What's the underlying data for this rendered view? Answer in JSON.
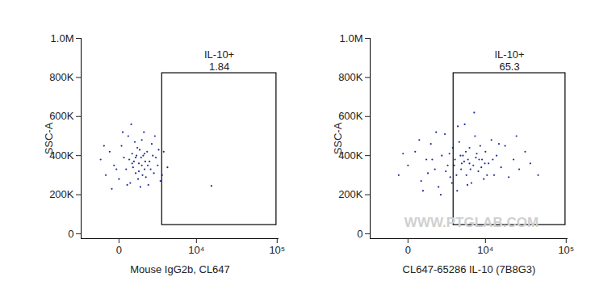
{
  "chart_data": [
    {
      "type": "scatter",
      "x_label": "Mouse IgG2b, CL647",
      "y_label": "SSC-A",
      "log": "x",
      "color": "#1f2d9c",
      "xlim": [
        -2500,
        105000
      ],
      "ylim": [
        -25000,
        1000000
      ],
      "xticks": [
        0,
        {
          "value": 10000,
          "label": "10⁴"
        },
        {
          "value": 100000,
          "label": "10⁵"
        }
      ],
      "yticks": [
        0,
        {
          "value": 200000,
          "label": "200K"
        },
        {
          "value": 400000,
          "label": "400K"
        },
        {
          "value": 600000,
          "label": "600K"
        },
        {
          "value": 800000,
          "label": "800K"
        },
        {
          "value": 1000000,
          "label": "1.0M"
        }
      ],
      "x": [
        -900,
        -600,
        -400,
        -200,
        0,
        100,
        200,
        300,
        400,
        500,
        600,
        700,
        800,
        900,
        1000,
        1100,
        1200,
        1300,
        1400,
        1500,
        1600,
        1800,
        2000,
        2200,
        2400,
        2600,
        2900,
        3300,
        3800,
        -700,
        -300,
        150,
        350,
        550,
        750,
        950,
        1150,
        1350,
        1700,
        1900,
        2100,
        2300,
        2700,
        3100,
        -100,
        450,
        650,
        850,
        1050,
        1250,
        1450,
        1650,
        1000,
        800,
        600,
        1200,
        1400,
        15700
      ],
      "y": [
        380000,
        300000,
        420000,
        350000,
        280000,
        450000,
        390000,
        330000,
        500000,
        260000,
        410000,
        370000,
        310000,
        440000,
        360000,
        240000,
        480000,
        400000,
        330000,
        290000,
        420000,
        370000,
        460000,
        310000,
        390000,
        350000,
        270000,
        420000,
        340000,
        450000,
        230000,
        520000,
        250000,
        560000,
        470000,
        280000,
        390000,
        520000,
        250000,
        330000,
        400000,
        500000,
        430000,
        300000,
        330000,
        380000,
        340000,
        400000,
        430000,
        300000,
        370000,
        350000,
        320000,
        390000,
        360000,
        350000,
        410000,
        245000
      ],
      "annotations": [
        {
          "type": "gate",
          "x": [
            3100,
            98000
          ],
          "y": [
            45000,
            822000
          ],
          "label": "IL-10+",
          "value": 1.84
        }
      ]
    },
    {
      "type": "scatter",
      "x_label": "CL647-65286 IL-10 (7B8G3)",
      "y_label": "SSC-A",
      "log": "x",
      "color": "#1f2d9c",
      "xlim": [
        -2500,
        105000
      ],
      "ylim": [
        -25000,
        1000000
      ],
      "xticks": [
        0,
        {
          "value": 10000,
          "label": "10⁴"
        },
        {
          "value": 100000,
          "label": "10⁵"
        }
      ],
      "yticks": [
        0,
        {
          "value": 200000,
          "label": "200K"
        },
        {
          "value": 400000,
          "label": "400K"
        },
        {
          "value": 600000,
          "label": "600K"
        },
        {
          "value": 800000,
          "label": "800K"
        },
        {
          "value": 1000000,
          "label": "1.0M"
        }
      ],
      "x": [
        -400,
        0,
        300,
        600,
        900,
        1200,
        1500,
        1800,
        2100,
        2400,
        2700,
        3000,
        3300,
        3600,
        3900,
        4200,
        4500,
        4800,
        5100,
        5400,
        5700,
        6000,
        6400,
        6800,
        7200,
        7600,
        8000,
        8500,
        9000,
        9500,
        10000,
        11000,
        12000,
        13000,
        14000,
        16000,
        18000,
        20000,
        23000,
        27000,
        32000,
        37000,
        7000,
        4000,
        2000,
        1000,
        500,
        1600,
        2900,
        3800,
        4600,
        5300,
        6200,
        7400,
        8800,
        10500,
        12500,
        15000,
        3500,
        5000,
        6000,
        4400,
        2500,
        1300,
        8200,
        9800,
        -200,
        700,
        25000,
        46000,
        3200,
        5600
      ],
      "y": [
        300000,
        350000,
        420000,
        270000,
        380000,
        460000,
        330000,
        240000,
        400000,
        510000,
        350000,
        290000,
        440000,
        380000,
        220000,
        470000,
        330000,
        400000,
        560000,
        300000,
        380000,
        440000,
        260000,
        350000,
        500000,
        410000,
        320000,
        450000,
        380000,
        280000,
        420000,
        360000,
        480000,
        300000,
        400000,
        340000,
        450000,
        290000,
        380000,
        330000,
        420000,
        360000,
        620000,
        550000,
        200000,
        310000,
        480000,
        520000,
        410000,
        300000,
        360000,
        420000,
        330000,
        390000,
        340000,
        300000,
        380000,
        460000,
        350000,
        370000,
        360000,
        400000,
        320000,
        380000,
        380000,
        360000,
        410000,
        220000,
        500000,
        300000,
        260000,
        250000
      ],
      "annotations": [
        {
          "type": "gate",
          "x": [
            3400,
            98000
          ],
          "y": [
            45000,
            822000
          ],
          "label": "IL-10+",
          "value": 65.3
        },
        {
          "type": "watermark",
          "text": "WWW.PTGLAB.COM",
          "x": 6400,
          "y": 58000
        }
      ]
    }
  ]
}
